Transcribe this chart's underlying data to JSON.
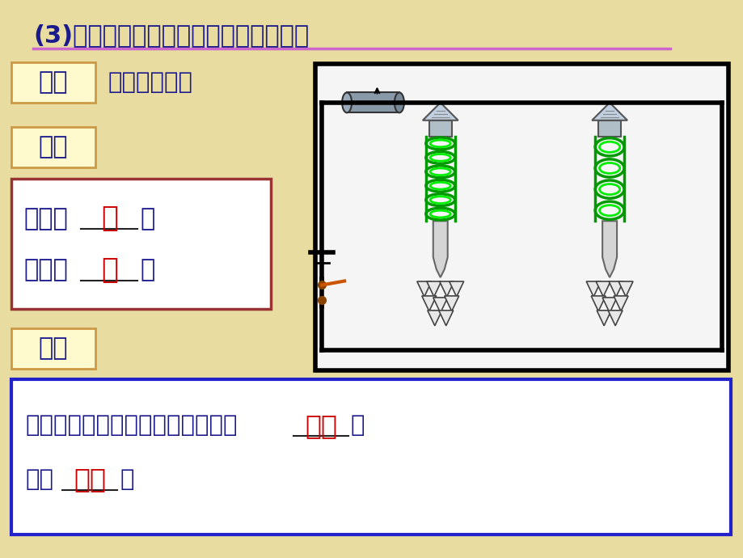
{
  "bg_color": "#e8dca0",
  "title": "(3)研究电磁铁的磁性跟线圈匠数的关系",
  "title_color": "#1a1a8c",
  "title_underline_color": "#cc66cc",
  "shiyan_label": "实验",
  "shiyan_text": "改变线圈匠数",
  "shiyan_box_color": "#fffacd",
  "shiyan_box_border": "#cc9944",
  "xianxiang_label": "现象",
  "xianxiang_box_color": "#fffacd",
  "xianxiang_box_border": "#cc9944",
  "phen_box_border": "#993333",
  "phen_line1_pre": "匠数越",
  "phen_line1_key": "多",
  "phen_line1_suf": "，",
  "phen_line2_pre": "磁性越",
  "phen_line2_key": "强",
  "phen_line2_suf": "。",
  "jielun_label": "结论",
  "jielun_box_color": "#fffacd",
  "jielun_box_border": "#cc9944",
  "conc_box_border": "#2222cc",
  "conc_line1_pre": "当电流一定时，电磁铁线圈的匠数",
  "conc_line1_key": "越多",
  "conc_line1_suf": "，",
  "conc_line2_pre": "磁性",
  "conc_line2_key": "越强",
  "conc_line2_suf": "。",
  "key_color": "#cc0000",
  "text_color": "#1a1a8c",
  "white_bg": "#ffffff"
}
